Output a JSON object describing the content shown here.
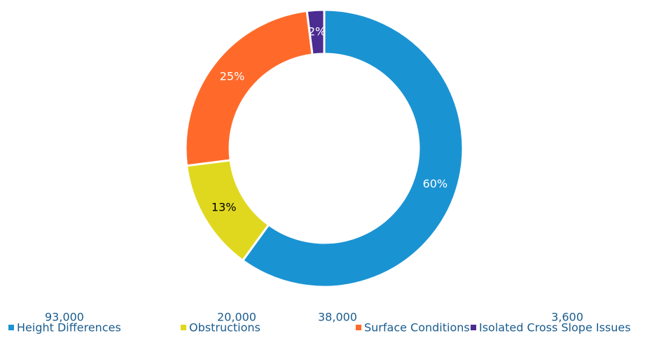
{
  "chart_data": {
    "type": "donut",
    "categories": [
      "Height Differences",
      "Obstructions",
      "Surface Conditions",
      "Isolated Cross Slope Issues"
    ],
    "values": [
      60,
      13,
      25,
      2
    ],
    "value_labels": [
      "60%",
      "13%",
      "25%",
      "2%"
    ],
    "legend_values": [
      {
        "value": 93000,
        "label": "93,000"
      },
      {
        "value": 20000,
        "label": "20,000"
      },
      {
        "value": 38000,
        "label": "38,000"
      },
      {
        "value": 3600,
        "label": "3,600"
      }
    ],
    "colors": [
      "#1a93d3",
      "#e0d81e",
      "#ff6a2a",
      "#4b2c91"
    ],
    "label_colors": [
      "#ffffff",
      "#000000",
      "#ffffff",
      "#ffffff"
    ],
    "legend": "bottom"
  }
}
